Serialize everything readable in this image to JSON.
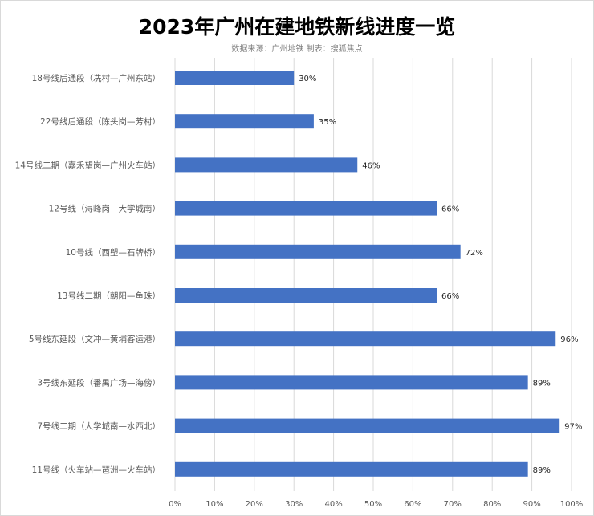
{
  "chart_data": {
    "type": "bar",
    "orientation": "horizontal",
    "title": "2023年广州在建地铁新线进度一览",
    "subtitle": "数据来源：广州地铁  制表：搜狐焦点",
    "categories": [
      "18号线后通段（冼村—广州东站）",
      "22号线后通段（陈头岗—芳村）",
      "14号线二期（嘉禾望岗—广州火车站）",
      "12号线（浔峰岗—大学城南）",
      "10号线（西塱—石牌桥）",
      "13号线二期（朝阳—鱼珠）",
      "5号线东延段（文冲—黄埔客运港）",
      "3号线东延段（番禺广场—海傍）",
      "7号线二期（大学城南—水西北）",
      "11号线（火车站—琶洲—火车站）"
    ],
    "values": [
      30,
      35,
      46,
      66,
      72,
      66,
      96,
      89,
      97,
      89
    ],
    "data_labels": [
      "30%",
      "35%",
      "46%",
      "66%",
      "72%",
      "66%",
      "96%",
      "89%",
      "97%",
      "89%"
    ],
    "xlim": [
      0,
      100
    ],
    "xticks": [
      "0%",
      "10%",
      "20%",
      "30%",
      "40%",
      "50%",
      "60%",
      "70%",
      "80%",
      "90%",
      "100%"
    ],
    "grid": true,
    "bar_color": "#4472c4",
    "xlabel": "",
    "ylabel": ""
  }
}
